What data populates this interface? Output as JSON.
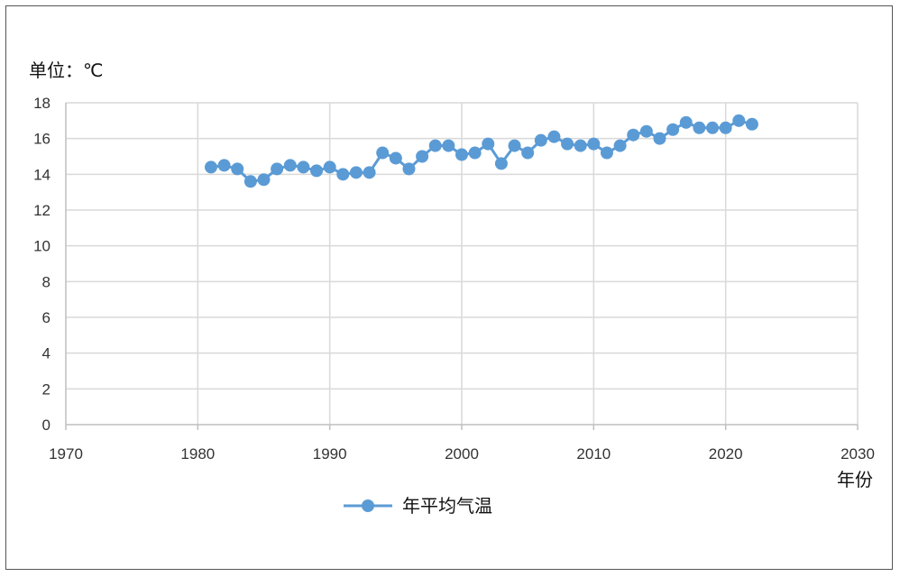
{
  "chart_data": {
    "type": "line",
    "ylabel": "单位：℃",
    "xlabel": "年份",
    "xlim": [
      1970,
      2030
    ],
    "ylim": [
      0,
      18
    ],
    "x_ticks": [
      1970,
      1980,
      1990,
      2000,
      2010,
      2020,
      2030
    ],
    "y_ticks": [
      0,
      2,
      4,
      6,
      8,
      10,
      12,
      14,
      16,
      18
    ],
    "grid": true,
    "legend_position": "bottom",
    "series": [
      {
        "name": "年平均气温",
        "color": "#5b9bd5",
        "x": [
          1981,
          1982,
          1983,
          1984,
          1985,
          1986,
          1987,
          1988,
          1989,
          1990,
          1991,
          1992,
          1993,
          1994,
          1995,
          1996,
          1997,
          1998,
          1999,
          2000,
          2001,
          2002,
          2003,
          2004,
          2005,
          2006,
          2007,
          2008,
          2009,
          2010,
          2011,
          2012,
          2013,
          2014,
          2015,
          2016,
          2017,
          2018,
          2019,
          2020,
          2021,
          2022
        ],
        "y": [
          14.4,
          14.5,
          14.3,
          13.6,
          13.7,
          14.3,
          14.5,
          14.4,
          14.2,
          14.4,
          14.0,
          14.1,
          14.1,
          15.2,
          14.9,
          14.3,
          15.0,
          15.6,
          15.6,
          15.1,
          15.2,
          15.7,
          14.6,
          15.6,
          15.2,
          15.9,
          16.1,
          15.7,
          15.6,
          15.7,
          15.2,
          15.6,
          16.2,
          16.4,
          16.0,
          16.5,
          16.9,
          16.6,
          16.6,
          16.6,
          17.0,
          16.8
        ]
      }
    ]
  }
}
